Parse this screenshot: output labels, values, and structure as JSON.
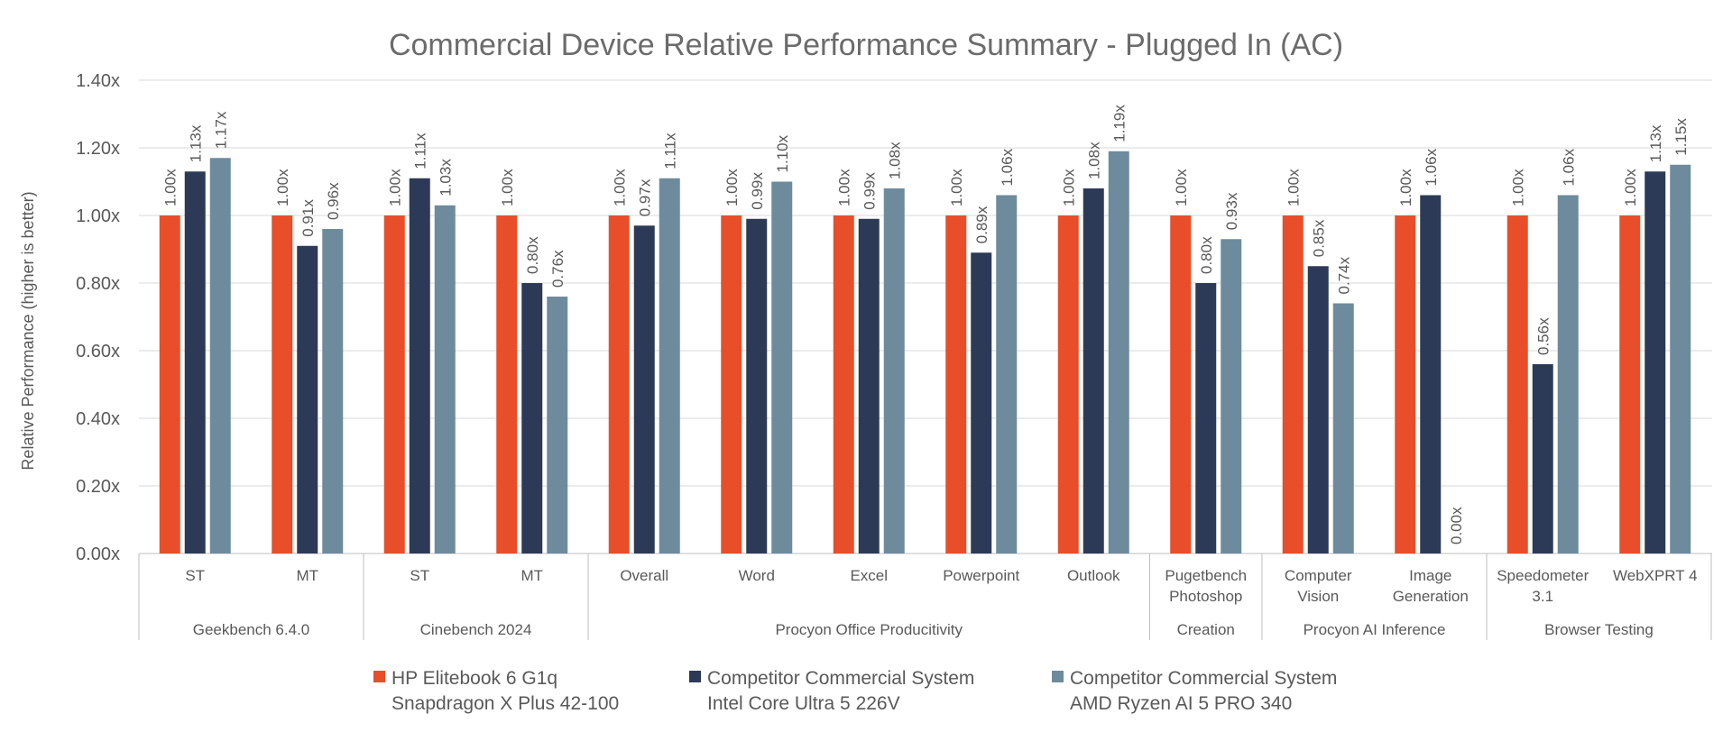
{
  "chart_data": {
    "type": "bar",
    "title": "Commercial Device Relative Performance Summary - Plugged In (AC)",
    "ylabel": "Relative Performance (higher is better)",
    "ylim": [
      0,
      1.4
    ],
    "yticks": [
      0,
      0.2,
      0.4,
      0.6,
      0.8,
      1.0,
      1.2,
      1.4
    ],
    "ytick_labels": [
      "0.00x",
      "0.20x",
      "0.40x",
      "0.60x",
      "0.80x",
      "1.00x",
      "1.20x",
      "1.40x"
    ],
    "grid": true,
    "legend_position": "bottom",
    "categories": [
      [
        "ST"
      ],
      [
        "MT"
      ],
      [
        "ST"
      ],
      [
        "MT"
      ],
      [
        "Overall"
      ],
      [
        "Word"
      ],
      [
        "Excel"
      ],
      [
        "Powerpoint"
      ],
      [
        "Outlook"
      ],
      [
        "Pugetbench",
        "Photoshop"
      ],
      [
        "Computer",
        "Vision"
      ],
      [
        "Image",
        "Generation"
      ],
      [
        "Speedometer",
        "3.1"
      ],
      [
        "WebXPRT 4"
      ]
    ],
    "groups": [
      {
        "label": "Geekbench 6.4.0",
        "start": 0,
        "end": 1
      },
      {
        "label": "Cinebench 2024",
        "start": 2,
        "end": 3
      },
      {
        "label": "Procyon Office Producitivity",
        "start": 4,
        "end": 8
      },
      {
        "label": "Creation",
        "start": 9,
        "end": 9
      },
      {
        "label": "Procyon AI Inference",
        "start": 10,
        "end": 11
      },
      {
        "label": "Browser Testing",
        "start": 12,
        "end": 13
      }
    ],
    "series": [
      {
        "name": "HP Elitebook 6 G1q",
        "name2": "Snapdragon X Plus 42-100",
        "color": "#E84E2A",
        "values": [
          1.0,
          1.0,
          1.0,
          1.0,
          1.0,
          1.0,
          1.0,
          1.0,
          1.0,
          1.0,
          1.0,
          1.0,
          1.0,
          1.0
        ],
        "labels": [
          "1.00x",
          "1.00x",
          "1.00x",
          "1.00x",
          "1.00x",
          "1.00x",
          "1.00x",
          "1.00x",
          "1.00x",
          "1.00x",
          "1.00x",
          "1.00x",
          "1.00x",
          "1.00x"
        ]
      },
      {
        "name": "Competitor Commercial System",
        "name2": "Intel Core Ultra 5 226V",
        "color": "#2D3A57",
        "values": [
          1.13,
          0.91,
          1.11,
          0.8,
          0.97,
          0.99,
          0.99,
          0.89,
          1.08,
          0.8,
          0.85,
          1.06,
          0.56,
          1.13
        ],
        "labels": [
          "1.13x",
          "0.91x",
          "1.11x",
          "0.80x",
          "0.97x",
          "0.99x",
          "0.99x",
          "0.89x",
          "1.08x",
          "0.80x",
          "0.85x",
          "1.06x",
          "0.56x",
          "1.13x"
        ]
      },
      {
        "name": "Competitor Commercial System",
        "name2": "AMD Ryzen AI 5 PRO 340",
        "color": "#6E8B9E",
        "values": [
          1.17,
          0.96,
          1.03,
          0.76,
          1.11,
          1.1,
          1.08,
          1.06,
          1.19,
          0.93,
          0.74,
          0.0,
          1.06,
          1.15
        ],
        "labels": [
          "1.17x",
          "0.96x",
          "1.03x",
          "0.76x",
          "1.11x",
          "1.10x",
          "1.08x",
          "1.06x",
          "1.19x",
          "0.93x",
          "0.74x",
          "0.00x",
          "1.06x",
          "1.15x"
        ]
      }
    ]
  }
}
